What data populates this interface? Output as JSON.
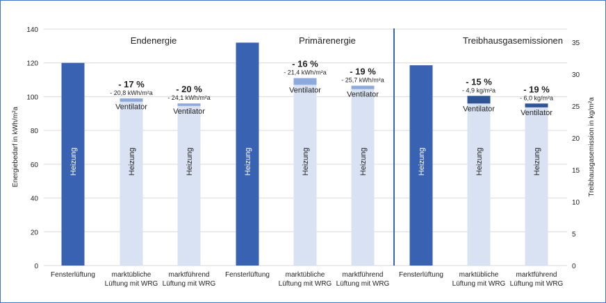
{
  "chart_data": {
    "type": "bar",
    "stacked": true,
    "ylabel": "Energiebedarf in kWh/m²a",
    "y2label": "Treibhausgasemission in kg/m²a",
    "ylim": [
      0,
      140
    ],
    "yticks": [
      0,
      20,
      40,
      60,
      80,
      100,
      120,
      140
    ],
    "y2lim": [
      0,
      37
    ],
    "y2ticks": [
      0,
      5,
      10,
      15,
      20,
      25,
      30,
      35
    ],
    "grid": true,
    "groups": [
      {
        "title": "Endenergie",
        "axis": "left",
        "bars": [
          {
            "category": "Fensterlüftung",
            "heizung": 120,
            "ventilator": 0
          },
          {
            "category": "marktübliche Lüftung mit WRG",
            "heizung": 97,
            "ventilator": 2,
            "pct": "- 17 %",
            "delta": "- 20,8 kWh/m²a"
          },
          {
            "category": "marktführend Lüftung mit WRG",
            "heizung": 94.5,
            "ventilator": 1.5,
            "pct": "- 20 %",
            "delta": "- 24,1 kWh/m²a"
          }
        ]
      },
      {
        "title": "Primärenergie",
        "axis": "left",
        "bars": [
          {
            "category": "Fensterlüftung",
            "heizung": 132,
            "ventilator": 0
          },
          {
            "category": "marktübliche Lüftung mit WRG",
            "heizung": 107,
            "ventilator": 4,
            "pct": "- 16 %",
            "delta": "- 21,4 kWh/m²a"
          },
          {
            "category": "marktführend Lüftung mit WRG",
            "heizung": 104.5,
            "ventilator": 2,
            "pct": "- 19 %",
            "delta": "- 25,7 kWh/m²a"
          }
        ]
      },
      {
        "title": "Treibhausgasemissionen",
        "axis": "right",
        "bars": [
          {
            "category": "Fensterlüftung",
            "heizung": 31.4,
            "ventilator": 0
          },
          {
            "category": "marktübliche Lüftung mit WRG",
            "heizung": 25.4,
            "ventilator": 1.2,
            "pct": "- 15 %",
            "delta": "- 4,9 kg/m²a"
          },
          {
            "category": "marktführend Lüftung mit WRG",
            "heizung": 24.8,
            "ventilator": 0.6,
            "pct": "- 19 %",
            "delta": "- 6,0 kg/m²a"
          }
        ]
      }
    ],
    "segment_labels": {
      "heizung": "Heizung",
      "ventilator": "Ventilator"
    },
    "colors": {
      "base": "#3A62B2",
      "heizung_light": "#D9E2F3",
      "ventilator": "#8EA9DB",
      "ventilator_dark": "#2F5597",
      "divider": "#3A62B2"
    }
  }
}
